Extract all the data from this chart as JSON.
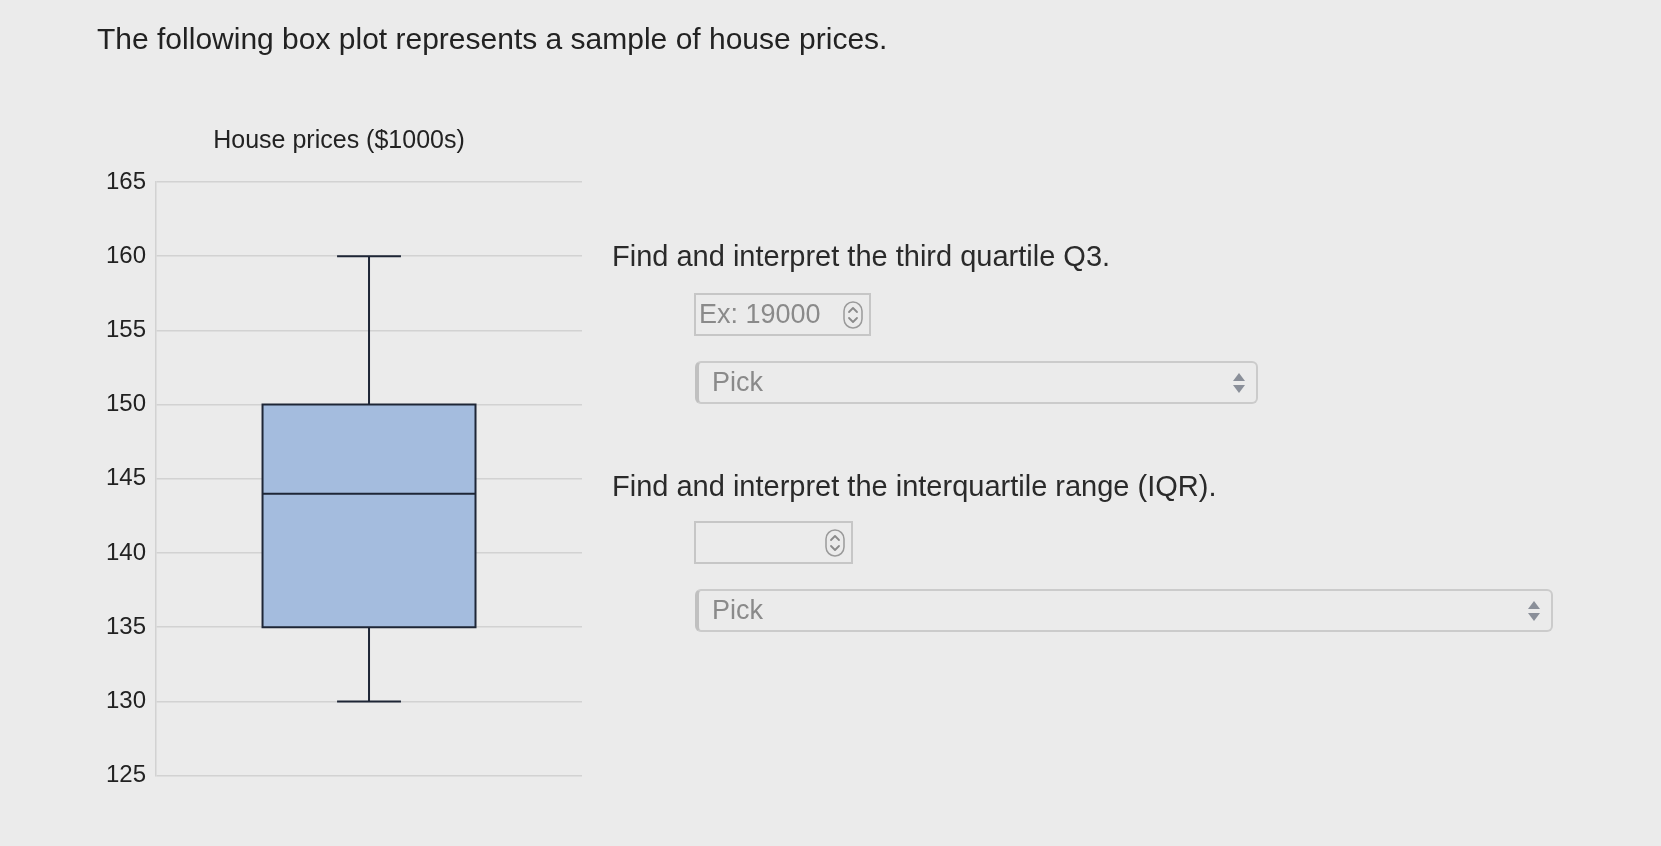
{
  "chart_data": [
    {
      "type": "box",
      "title": "The following box plot represents a sample of house prices.",
      "subtitle": "House prices ($1000s)",
      "categories": [
        null
      ],
      "color": "#a4bcde",
      "boxes": [
        {
          "low": 130,
          "q1": 135,
          "median": 144,
          "q3": 150,
          "high": 160
        }
      ],
      "ylim": [
        125,
        165
      ],
      "yticks": [
        125,
        130,
        135,
        140,
        145,
        150,
        155,
        160,
        165
      ],
      "grid": "y",
      "tick_labels": "y",
      "legend": false
    },
    {
      "type": "other",
      "annotations": [
        "Find and interpret the third quartile Q3.",
        "Ex: 19000",
        "Pick",
        "Find and interpret the interquartile range (IQR).",
        "Pick"
      ]
    }
  ]
}
